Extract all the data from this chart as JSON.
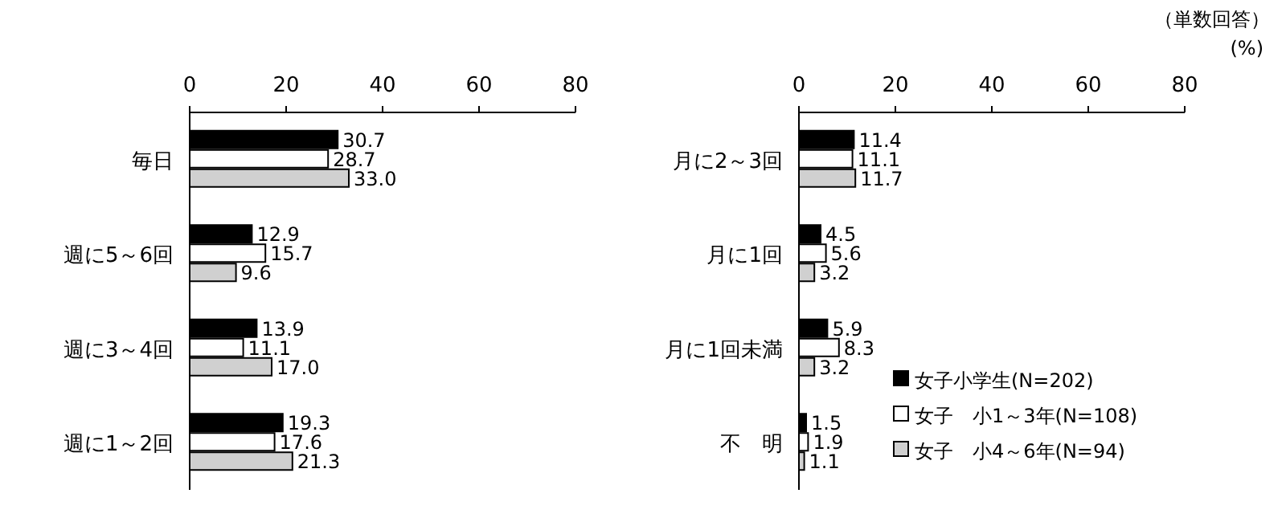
{
  "chart_data": [
    {
      "type": "bar",
      "orientation": "horizontal",
      "categories": [
        "毎日",
        "週に5～6回",
        "週に3～4回",
        "週に1～2回"
      ],
      "xlim": [
        0,
        80
      ],
      "xticks": [
        0,
        20,
        40,
        60,
        80
      ],
      "legend": false,
      "series": [
        {
          "color": "#000000",
          "values": [
            30.7,
            12.9,
            13.9,
            19.3
          ],
          "value_labels": [
            "30.7",
            "12.9",
            "13.9",
            "19.3"
          ]
        },
        {
          "color": "#ffffff",
          "values": [
            28.7,
            15.7,
            11.1,
            17.6
          ],
          "value_labels": [
            "28.7",
            "15.7",
            "11.1",
            "17.6"
          ]
        },
        {
          "color": "#d0d0d0",
          "values": [
            33.0,
            9.6,
            17.0,
            21.3
          ],
          "value_labels": [
            "33.0",
            "9.6",
            "17.0",
            "21.3"
          ]
        }
      ]
    },
    {
      "type": "bar",
      "orientation": "horizontal",
      "categories": [
        "月に2～3回",
        "月に1回",
        "月に1回未満",
        "不　明"
      ],
      "xlim": [
        0,
        80
      ],
      "xticks": [
        0,
        20,
        40,
        60,
        80
      ],
      "legend": "bottom right",
      "annotations": [
        "（単数回答）",
        "(%)"
      ],
      "series": [
        {
          "name": "女子小学生(N=202)",
          "color": "#000000",
          "values": [
            11.4,
            4.5,
            5.9,
            1.5
          ],
          "value_labels": [
            "11.4",
            "4.5",
            "5.9",
            "1.5"
          ]
        },
        {
          "name": "女子　小1～3年(N=108)",
          "color": "#ffffff",
          "values": [
            11.1,
            5.6,
            8.3,
            1.9
          ],
          "value_labels": [
            "11.1",
            "5.6",
            "8.3",
            "1.9"
          ]
        },
        {
          "name": "女子　小4～6年(N=94)",
          "color": "#d0d0d0",
          "values": [
            11.7,
            3.2,
            3.2,
            1.1
          ],
          "value_labels": [
            "11.7",
            "3.2",
            "3.2",
            "1.1"
          ]
        }
      ]
    }
  ]
}
